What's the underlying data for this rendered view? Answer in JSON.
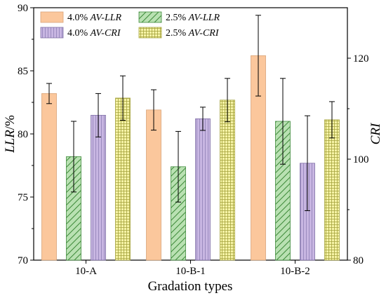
{
  "chart_data": {
    "type": "bar",
    "xlabel": "Gradation types",
    "ylabel_left": "LLR/%",
    "ylabel_left_parts": [
      "LLR",
      "/%"
    ],
    "ylabel_right": "CRI",
    "categories": [
      "10-A",
      "10-B-1",
      "10-B-2"
    ],
    "ylim_left": [
      70,
      90
    ],
    "ylim_right": [
      80,
      130
    ],
    "yticks_left": [
      "70",
      "75",
      "80",
      "85",
      "90"
    ],
    "yticks_right": [
      "80",
      "100",
      "120"
    ],
    "legend_position": "top-left",
    "series": [
      {
        "name": "4.0% AV-LLR",
        "name_prefix": "4.0% ",
        "name_italic": "AV-LLR",
        "axis": "left",
        "values": [
          83.2,
          81.9,
          86.2
        ],
        "errors": [
          0.8,
          1.6,
          3.2
        ],
        "fill": "#FBC79C",
        "stroke": "#D9A47A",
        "pattern": "solid"
      },
      {
        "name": "2.5% AV-LLR",
        "name_prefix": "2.5% ",
        "name_italic": "AV-LLR",
        "axis": "left",
        "values": [
          78.2,
          77.4,
          81.0
        ],
        "errors": [
          2.8,
          2.8,
          3.4
        ],
        "fill": "#B9E1B2",
        "stroke": "#3E8A3A",
        "pattern": "diagonal"
      },
      {
        "name": "4.0% AV-CRI",
        "name_prefix": "4.0% ",
        "name_italic": "AV-CRI",
        "axis": "right",
        "values": [
          108.7,
          108.0,
          99.2
        ],
        "errors": [
          4.3,
          2.3,
          9.4
        ],
        "fill": "#C8B6E2",
        "stroke": "#7F6FA6",
        "pattern": "vertical"
      },
      {
        "name": "2.5% AV-CRI",
        "name_prefix": "2.5% ",
        "name_italic": "AV-CRI",
        "axis": "right",
        "values": [
          112.1,
          111.7,
          107.8
        ],
        "errors": [
          4.4,
          4.3,
          3.6
        ],
        "fill": "#F6F3A6",
        "stroke": "#A4A23C",
        "pattern": "grid"
      }
    ]
  }
}
